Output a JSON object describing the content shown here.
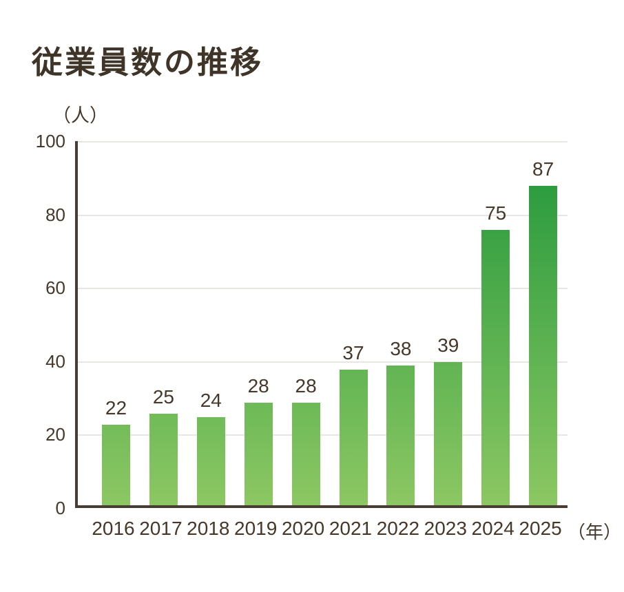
{
  "chart_data": {
    "type": "bar",
    "title": "従業員数の推移",
    "y_unit": "（人）",
    "x_unit": "（年）",
    "categories": [
      "2016",
      "2017",
      "2018",
      "2019",
      "2020",
      "2021",
      "2022",
      "2023",
      "2024",
      "2025"
    ],
    "values": [
      22,
      25,
      24,
      28,
      28,
      37,
      38,
      39,
      75,
      87
    ],
    "ylim": [
      0,
      100
    ],
    "yticks": [
      0,
      20,
      40,
      60,
      80,
      100
    ],
    "grid": true,
    "legend": false,
    "data_labels": true,
    "colors": {
      "bar_gradient_top": "#1f963a",
      "bar_gradient_bottom": "#8cc763",
      "axis": "#4a3c32",
      "grid_line": "#e8e6e2",
      "text": "#453829",
      "title": "#3f3428",
      "background": "#ffffff"
    }
  }
}
